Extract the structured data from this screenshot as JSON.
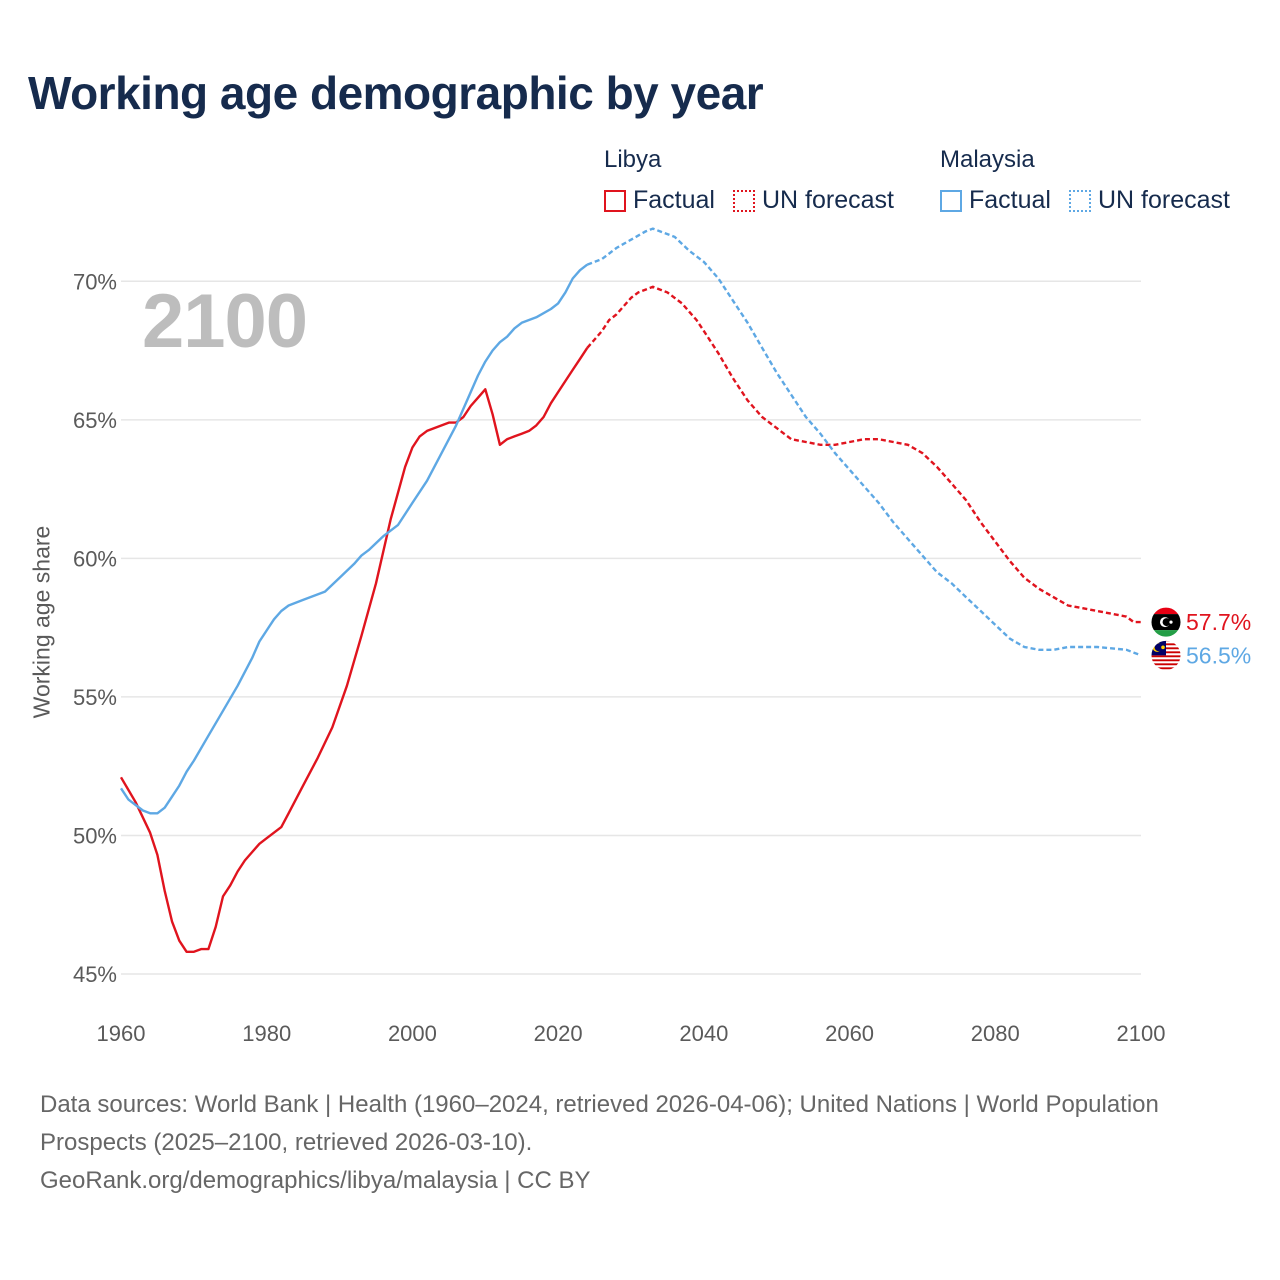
{
  "title": "Working age demographic by year",
  "year_label": "2100",
  "legend": {
    "groups": [
      {
        "name": "Libya",
        "color": "#e0141e",
        "factual_label": "Factual",
        "forecast_label": "UN forecast"
      },
      {
        "name": "Malaysia",
        "color": "#5ea8e4",
        "factual_label": "Factual",
        "forecast_label": "UN forecast"
      }
    ]
  },
  "footer": {
    "sources": "Data sources: World Bank | Health (1960–2024, retrieved 2026-04-06); United Nations | World Population Prospects (2025–2100, retrieved 2026-03-10).",
    "credit": "GeoRank.org/demographics/libya/malaysia | CC BY"
  },
  "chart_data": {
    "type": "line",
    "title": "Working age demographic by year",
    "xlabel": "",
    "ylabel": "Working age share",
    "xlim": [
      1960,
      2100
    ],
    "ylim": [
      45,
      72.5
    ],
    "x_ticks": [
      1960,
      1980,
      2000,
      2020,
      2040,
      2060,
      2080,
      2100
    ],
    "y_ticks": [
      45,
      50,
      55,
      60,
      65,
      70
    ],
    "y_tick_labels": [
      "45%",
      "50%",
      "55%",
      "60%",
      "65%",
      "70%"
    ],
    "grid": true,
    "factual_end_year": 2024,
    "series": [
      {
        "name": "Libya",
        "color": "#e0141e",
        "end_label": "57.7%",
        "points": [
          [
            1960,
            52.1
          ],
          [
            1962,
            51.2
          ],
          [
            1964,
            50.1
          ],
          [
            1965,
            49.3
          ],
          [
            1966,
            48.0
          ],
          [
            1967,
            46.9
          ],
          [
            1968,
            46.2
          ],
          [
            1969,
            45.8
          ],
          [
            1970,
            45.8
          ],
          [
            1971,
            45.9
          ],
          [
            1972,
            45.9
          ],
          [
            1973,
            46.7
          ],
          [
            1974,
            47.8
          ],
          [
            1975,
            48.2
          ],
          [
            1976,
            48.7
          ],
          [
            1977,
            49.1
          ],
          [
            1978,
            49.4
          ],
          [
            1979,
            49.7
          ],
          [
            1980,
            49.9
          ],
          [
            1982,
            50.3
          ],
          [
            1983,
            50.8
          ],
          [
            1985,
            51.8
          ],
          [
            1987,
            52.8
          ],
          [
            1989,
            53.9
          ],
          [
            1991,
            55.4
          ],
          [
            1993,
            57.2
          ],
          [
            1995,
            59.1
          ],
          [
            1997,
            61.4
          ],
          [
            1999,
            63.3
          ],
          [
            2000,
            64.0
          ],
          [
            2001,
            64.4
          ],
          [
            2002,
            64.6
          ],
          [
            2003,
            64.7
          ],
          [
            2004,
            64.8
          ],
          [
            2005,
            64.9
          ],
          [
            2006,
            64.9
          ],
          [
            2007,
            65.1
          ],
          [
            2008,
            65.5
          ],
          [
            2009,
            65.8
          ],
          [
            2010,
            66.1
          ],
          [
            2011,
            65.2
          ],
          [
            2012,
            64.1
          ],
          [
            2013,
            64.3
          ],
          [
            2014,
            64.4
          ],
          [
            2015,
            64.5
          ],
          [
            2016,
            64.6
          ],
          [
            2017,
            64.8
          ],
          [
            2018,
            65.1
          ],
          [
            2019,
            65.6
          ],
          [
            2020,
            66.0
          ],
          [
            2021,
            66.4
          ],
          [
            2022,
            66.8
          ],
          [
            2023,
            67.2
          ],
          [
            2024,
            67.6
          ],
          [
            2025,
            67.9
          ],
          [
            2026,
            68.2
          ],
          [
            2027,
            68.6
          ],
          [
            2028,
            68.8
          ],
          [
            2029,
            69.1
          ],
          [
            2030,
            69.4
          ],
          [
            2031,
            69.6
          ],
          [
            2032,
            69.7
          ],
          [
            2033,
            69.8
          ],
          [
            2034,
            69.7
          ],
          [
            2035,
            69.6
          ],
          [
            2036,
            69.4
          ],
          [
            2037,
            69.2
          ],
          [
            2038,
            68.9
          ],
          [
            2039,
            68.6
          ],
          [
            2040,
            68.2
          ],
          [
            2042,
            67.4
          ],
          [
            2044,
            66.5
          ],
          [
            2046,
            65.7
          ],
          [
            2048,
            65.1
          ],
          [
            2050,
            64.7
          ],
          [
            2052,
            64.3
          ],
          [
            2054,
            64.2
          ],
          [
            2056,
            64.1
          ],
          [
            2058,
            64.1
          ],
          [
            2060,
            64.2
          ],
          [
            2062,
            64.3
          ],
          [
            2064,
            64.3
          ],
          [
            2066,
            64.2
          ],
          [
            2068,
            64.1
          ],
          [
            2070,
            63.8
          ],
          [
            2072,
            63.3
          ],
          [
            2074,
            62.7
          ],
          [
            2076,
            62.1
          ],
          [
            2078,
            61.3
          ],
          [
            2080,
            60.6
          ],
          [
            2082,
            59.9
          ],
          [
            2084,
            59.3
          ],
          [
            2086,
            58.9
          ],
          [
            2088,
            58.6
          ],
          [
            2090,
            58.3
          ],
          [
            2092,
            58.2
          ],
          [
            2094,
            58.1
          ],
          [
            2096,
            58.0
          ],
          [
            2098,
            57.9
          ],
          [
            2099,
            57.7
          ],
          [
            2100,
            57.7
          ]
        ]
      },
      {
        "name": "Malaysia",
        "color": "#5ea8e4",
        "end_label": "56.5%",
        "points": [
          [
            1960,
            51.7
          ],
          [
            1961,
            51.3
          ],
          [
            1962,
            51.1
          ],
          [
            1963,
            50.9
          ],
          [
            1964,
            50.8
          ],
          [
            1965,
            50.8
          ],
          [
            1966,
            51.0
          ],
          [
            1967,
            51.4
          ],
          [
            1968,
            51.8
          ],
          [
            1969,
            52.3
          ],
          [
            1970,
            52.7
          ],
          [
            1972,
            53.6
          ],
          [
            1974,
            54.5
          ],
          [
            1976,
            55.4
          ],
          [
            1978,
            56.4
          ],
          [
            1979,
            57.0
          ],
          [
            1980,
            57.4
          ],
          [
            1981,
            57.8
          ],
          [
            1982,
            58.1
          ],
          [
            1983,
            58.3
          ],
          [
            1985,
            58.5
          ],
          [
            1987,
            58.7
          ],
          [
            1988,
            58.8
          ],
          [
            1990,
            59.3
          ],
          [
            1992,
            59.8
          ],
          [
            1993,
            60.1
          ],
          [
            1994,
            60.3
          ],
          [
            1996,
            60.8
          ],
          [
            1998,
            61.2
          ],
          [
            2000,
            62.0
          ],
          [
            2002,
            62.8
          ],
          [
            2004,
            63.8
          ],
          [
            2006,
            64.8
          ],
          [
            2008,
            66.0
          ],
          [
            2009,
            66.6
          ],
          [
            2010,
            67.1
          ],
          [
            2011,
            67.5
          ],
          [
            2012,
            67.8
          ],
          [
            2013,
            68.0
          ],
          [
            2014,
            68.3
          ],
          [
            2015,
            68.5
          ],
          [
            2017,
            68.7
          ],
          [
            2019,
            69.0
          ],
          [
            2020,
            69.2
          ],
          [
            2021,
            69.6
          ],
          [
            2022,
            70.1
          ],
          [
            2023,
            70.4
          ],
          [
            2024,
            70.6
          ],
          [
            2026,
            70.8
          ],
          [
            2028,
            71.2
          ],
          [
            2030,
            71.5
          ],
          [
            2032,
            71.8
          ],
          [
            2033,
            71.9
          ],
          [
            2034,
            71.8
          ],
          [
            2036,
            71.6
          ],
          [
            2038,
            71.1
          ],
          [
            2040,
            70.7
          ],
          [
            2042,
            70.1
          ],
          [
            2044,
            69.3
          ],
          [
            2046,
            68.5
          ],
          [
            2048,
            67.6
          ],
          [
            2050,
            66.7
          ],
          [
            2052,
            65.9
          ],
          [
            2054,
            65.1
          ],
          [
            2056,
            64.5
          ],
          [
            2058,
            63.8
          ],
          [
            2060,
            63.2
          ],
          [
            2062,
            62.6
          ],
          [
            2064,
            62.0
          ],
          [
            2066,
            61.3
          ],
          [
            2068,
            60.7
          ],
          [
            2070,
            60.1
          ],
          [
            2072,
            59.5
          ],
          [
            2074,
            59.1
          ],
          [
            2076,
            58.6
          ],
          [
            2078,
            58.1
          ],
          [
            2080,
            57.6
          ],
          [
            2082,
            57.1
          ],
          [
            2084,
            56.8
          ],
          [
            2086,
            56.7
          ],
          [
            2088,
            56.7
          ],
          [
            2090,
            56.8
          ],
          [
            2094,
            56.8
          ],
          [
            2098,
            56.7
          ],
          [
            2099,
            56.6
          ],
          [
            2100,
            56.5
          ]
        ]
      }
    ]
  }
}
